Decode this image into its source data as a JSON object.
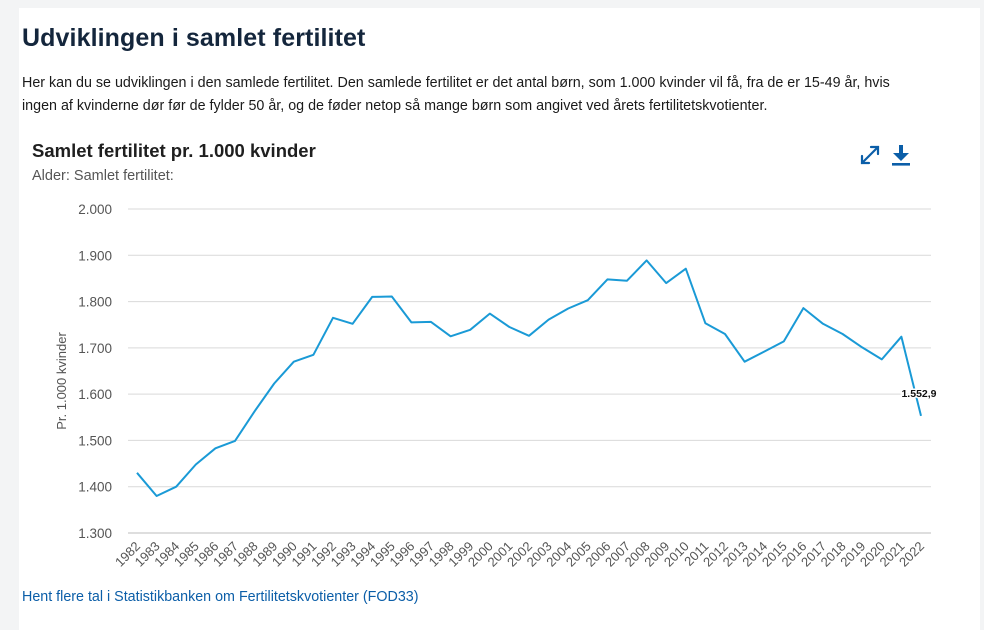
{
  "page": {
    "heading": "Udviklingen i samlet fertilitet",
    "intro": "Her kan du se udviklingen i den samlede fertilitet. Den samlede fertilitet er det antal børn, som 1.000 kvinder vil få, fra de er 15-49 år, hvis ingen af kvinderne dør før de fylder 50 år, og de føder netop så mange børn som angivet ved årets fertilitetskvotienter.",
    "link_text": "Hent flere tal i Statistikbanken om Fertilitetskvotienter (FOD33)"
  },
  "toolbar": {
    "expand_icon": "expand-icon",
    "download_icon": "download-icon"
  },
  "colors": {
    "line": "#1a9ad6",
    "link": "#0b5ea8",
    "icon": "#0b5ea8"
  },
  "chart_data": {
    "type": "line",
    "title": "Samlet fertilitet pr. 1.000 kvinder",
    "subtitle": "Alder: Samlet fertilitet:",
    "xlabel": "",
    "ylabel": "Pr. 1.000 kvinder",
    "ylim": [
      1300,
      2000
    ],
    "yticks": [
      "1.300",
      "1.400",
      "1.500",
      "1.600",
      "1.700",
      "1.800",
      "1.900",
      "2.000"
    ],
    "grid": true,
    "categories": [
      "1982",
      "1983",
      "1984",
      "1985",
      "1986",
      "1987",
      "1988",
      "1989",
      "1990",
      "1991",
      "1992",
      "1993",
      "1994",
      "1995",
      "1996",
      "1997",
      "1998",
      "1999",
      "2000",
      "2001",
      "2002",
      "2003",
      "2004",
      "2005",
      "2006",
      "2007",
      "2008",
      "2009",
      "2010",
      "2011",
      "2012",
      "2013",
      "2014",
      "2015",
      "2016",
      "2017",
      "2018",
      "2019",
      "2020",
      "2021",
      "2022"
    ],
    "series": [
      {
        "values": [
          1430,
          1380,
          1400,
          1448,
          1483,
          1499,
          1563,
          1623,
          1670,
          1685,
          1765,
          1752,
          1810,
          1811,
          1755,
          1756,
          1725,
          1739,
          1774,
          1745,
          1726,
          1761,
          1785,
          1803,
          1848,
          1845,
          1889,
          1840,
          1871,
          1753,
          1730,
          1670,
          1692,
          1714,
          1786,
          1752,
          1730,
          1701,
          1675,
          1724,
          1552.9
        ]
      }
    ],
    "annotations": [
      {
        "category": "2022",
        "label": "1.552,9"
      }
    ]
  }
}
